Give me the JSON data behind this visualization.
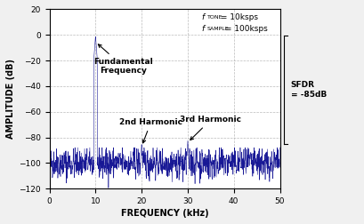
{
  "xlim": [
    0,
    50
  ],
  "ylim": [
    -120,
    20
  ],
  "xticks": [
    0,
    10,
    20,
    30,
    40,
    50
  ],
  "yticks": [
    -120,
    -100,
    -80,
    -60,
    -40,
    -20,
    0,
    20
  ],
  "xlabel": "FREQUENCY (kHz)",
  "ylabel": "AMPLITUDE (dB)",
  "line_color": "#00008B",
  "noise_floor": -100,
  "noise_std": 6,
  "fundamental_freq": 10,
  "fundamental_amp": -0.5,
  "harmonic2_freq": 20,
  "harmonic2_amp": -85,
  "harmonic3_freq": 30,
  "harmonic3_amp": -82,
  "sfdr_value": -85,
  "annotation_fundamental": "Fundamental\nFrequency",
  "annotation_2nd": "2nd Harmonic",
  "annotation_3rd": "3rd Harmonic",
  "label_ftone": "f",
  "label_ftone_sub": "TONE",
  "label_ftone_val": " = 10ksps",
  "label_fsample": "f",
  "label_fsample_sub": "SAMPLE",
  "label_fsample_val": " = 100ksps",
  "sfdr_label": "SFDR\n= -85dB",
  "background_color": "#f0f0f0",
  "plot_bg_color": "#ffffff",
  "grid_color": "#aaaaaa",
  "fig_width": 4.09,
  "fig_height": 2.52,
  "dpi": 100
}
